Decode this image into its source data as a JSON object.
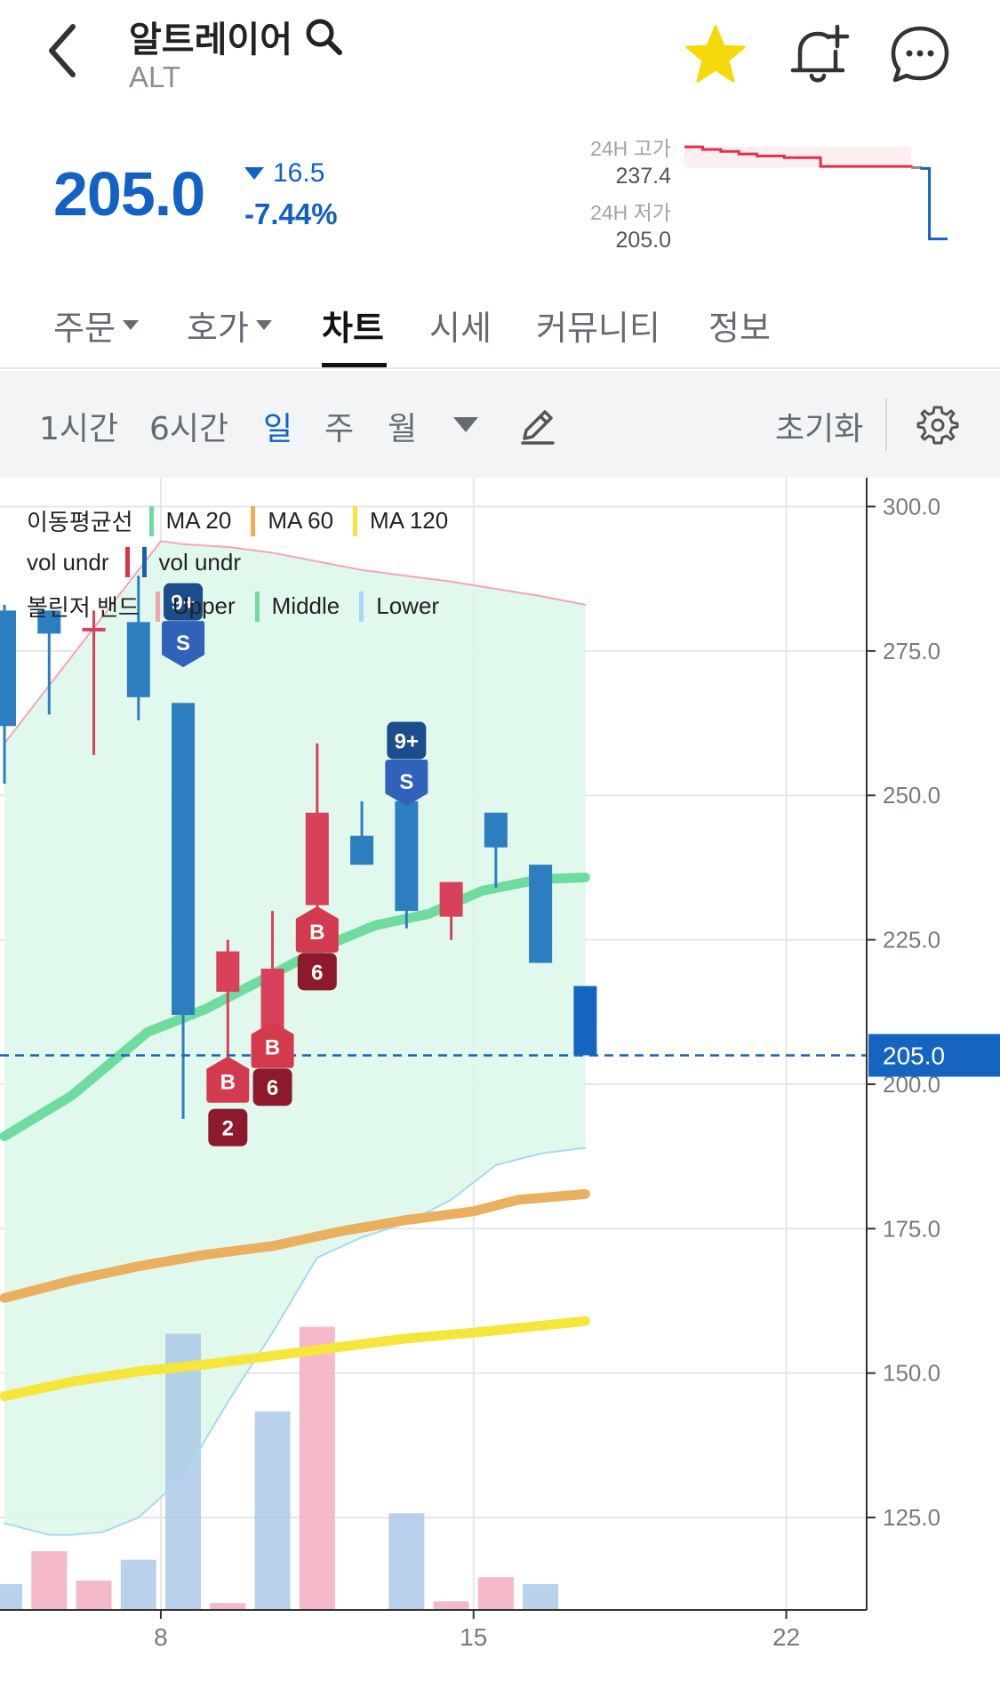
{
  "header": {
    "coin_name": "알트레이어",
    "symbol": "ALT",
    "icons": [
      "back-chevron-icon",
      "search-icon",
      "star-icon",
      "bell-plus-icon",
      "chat-bubble-icon"
    ],
    "favorite_color": "#f5d90a"
  },
  "price": {
    "current": "205.0",
    "change_abs": "16.5",
    "change_pct": "-7.44%",
    "direction": "down",
    "color": "#1261c4"
  },
  "high_low": {
    "high_label": "24H 고가",
    "high_value": "237.4",
    "low_label": "24H 저가",
    "low_value": "205.0"
  },
  "mini_chart": {
    "points": [
      237.4,
      237.4,
      236.5,
      236.5,
      235.8,
      235.8,
      234.9,
      234.9,
      234.2,
      234.2,
      234.2,
      233.6,
      233.6,
      233.6,
      233.6,
      230.5,
      230.5,
      230.5,
      230.5,
      230.5,
      230.5,
      230.5,
      230.5,
      230.5,
      230.5,
      230.1,
      229.8,
      205.0,
      205.0,
      205.0
    ],
    "high_color": "#e0304a",
    "low_color": "#1261c4"
  },
  "tabs": [
    {
      "label": "주문",
      "dropdown": true
    },
    {
      "label": "호가",
      "dropdown": true
    },
    {
      "label": "차트",
      "active": true
    },
    {
      "label": "시세"
    },
    {
      "label": "커뮤니티"
    },
    {
      "label": "정보"
    }
  ],
  "toolbar": {
    "intervals": [
      "1시간",
      "6시간",
      "일",
      "주",
      "월"
    ],
    "active_interval": "일",
    "reset_label": "초기화",
    "icons": [
      "dropdown-caret-icon",
      "pencil-icon",
      "gear-icon"
    ]
  },
  "legend": {
    "ma_title": "이동평균선",
    "ma_items": [
      {
        "label": "MA 20",
        "color": "#6edc9f"
      },
      {
        "label": "MA 60",
        "color": "#f5ac57"
      },
      {
        "label": "MA 120",
        "color": "#f6e63c"
      }
    ],
    "vol_title": "vol undr",
    "vol_label": "vol undr",
    "vol_colors": [
      "#e0304a",
      "#1a5fb4"
    ],
    "bb_title": "볼린저 밴드",
    "bb_items": [
      {
        "label": "Upper",
        "color": "#f5a5b0"
      },
      {
        "label": "Middle",
        "color": "#6edc9f"
      },
      {
        "label": "Lower",
        "color": "#a8d8f5"
      }
    ]
  },
  "chart_data": {
    "type": "candlestick",
    "y_ticks": [
      "300.0",
      "275.0",
      "250.0",
      "225.0",
      "200.0",
      "175.0",
      "150.0",
      "125.0"
    ],
    "ylim": [
      109,
      305
    ],
    "x_ticks": [
      {
        "day": 8,
        "label": "8"
      },
      {
        "day": 15,
        "label": "15"
      },
      {
        "day": 22,
        "label": "22"
      }
    ],
    "xlim": [
      4.4,
      23.8
    ],
    "current_price": 205.0,
    "current_price_label": "205.0",
    "up_color": "#d9415a",
    "down_color": "#2d7ec0",
    "candles": [
      {
        "day": 4.5,
        "open": 282,
        "close": 262,
        "high": 283,
        "low": 252
      },
      {
        "day": 5.5,
        "open": 282,
        "close": 278,
        "high": 282,
        "low": 264
      },
      {
        "day": 6.5,
        "open": 279,
        "close": 279,
        "high": 282,
        "low": 257
      },
      {
        "day": 7.5,
        "open": 280,
        "close": 267,
        "high": 288,
        "low": 263
      },
      {
        "day": 8.5,
        "open": 266,
        "close": 212,
        "high": 266,
        "low": 194
      },
      {
        "day": 9.5,
        "open": 216,
        "close": 223,
        "high": 225,
        "low": 204
      },
      {
        "day": 10.5,
        "open": 204,
        "close": 220,
        "high": 230,
        "low": 204
      },
      {
        "day": 11.5,
        "open": 231,
        "close": 247,
        "high": 259,
        "low": 230
      },
      {
        "day": 12.5,
        "open": 243,
        "close": 238,
        "high": 249,
        "low": 238
      },
      {
        "day": 13.5,
        "open": 249,
        "close": 230,
        "high": 249,
        "low": 227
      },
      {
        "day": 14.5,
        "open": 229,
        "close": 235,
        "high": 235,
        "low": 225
      },
      {
        "day": 15.5,
        "open": 247,
        "close": 241,
        "high": 247,
        "low": 234
      },
      {
        "day": 16.5,
        "open": 238,
        "close": 221,
        "high": 238,
        "low": 221
      },
      {
        "day": 17.5,
        "open": 217,
        "close": 205,
        "high": 217,
        "low": 205
      }
    ],
    "ma20": [
      [
        4.5,
        191
      ],
      [
        6,
        198
      ],
      [
        7.7,
        209
      ],
      [
        9,
        213
      ],
      [
        10.5,
        219
      ],
      [
        11.7,
        224
      ],
      [
        12.8,
        227.5
      ],
      [
        14,
        229.5
      ],
      [
        15.2,
        233.5
      ],
      [
        16.5,
        235.5
      ],
      [
        17.5,
        235.8
      ]
    ],
    "ma60": [
      [
        4.5,
        163
      ],
      [
        6,
        166
      ],
      [
        7.5,
        168.5
      ],
      [
        9,
        170.5
      ],
      [
        10.5,
        172
      ],
      [
        12,
        174.5
      ],
      [
        13.5,
        176.5
      ],
      [
        15,
        178
      ],
      [
        16,
        180
      ],
      [
        17.5,
        181
      ]
    ],
    "ma120": [
      [
        4.5,
        146
      ],
      [
        6,
        148.5
      ],
      [
        7.5,
        150.3
      ],
      [
        9,
        151.5
      ],
      [
        10.5,
        153
      ],
      [
        12,
        154.5
      ],
      [
        13.5,
        156
      ],
      [
        15,
        157
      ],
      [
        16.5,
        158.2
      ],
      [
        17.5,
        159
      ]
    ],
    "bb_upper": [
      [
        4.5,
        259
      ],
      [
        5.5,
        269
      ],
      [
        6.5,
        279
      ],
      [
        7.5,
        289
      ],
      [
        8,
        294
      ],
      [
        8.5,
        293.5
      ],
      [
        9.5,
        293
      ],
      [
        10.5,
        292
      ],
      [
        12.5,
        289
      ],
      [
        14.5,
        287
      ],
      [
        16.5,
        284.5
      ],
      [
        17.5,
        283
      ]
    ],
    "bb_lower": [
      [
        4.5,
        124
      ],
      [
        5.5,
        122
      ],
      [
        6,
        122
      ],
      [
        6.7,
        122.5
      ],
      [
        7.5,
        125
      ],
      [
        8.5,
        132
      ],
      [
        9.5,
        145
      ],
      [
        10.5,
        157
      ],
      [
        11.5,
        170
      ],
      [
        12.5,
        173.5
      ],
      [
        13.5,
        176
      ],
      [
        14.5,
        180
      ],
      [
        15.5,
        186
      ],
      [
        16.5,
        188
      ],
      [
        17.5,
        189
      ]
    ],
    "volume": [
      {
        "day": 4.5,
        "value": 15,
        "dir": "down"
      },
      {
        "day": 5.5,
        "value": 34,
        "dir": "up"
      },
      {
        "day": 6.5,
        "value": 17,
        "dir": "up"
      },
      {
        "day": 7.5,
        "value": 29,
        "dir": "down"
      },
      {
        "day": 8.5,
        "value": 160,
        "dir": "down"
      },
      {
        "day": 9.5,
        "value": 4,
        "dir": "up"
      },
      {
        "day": 10.5,
        "value": 115,
        "dir": "down"
      },
      {
        "day": 11.5,
        "value": 164,
        "dir": "up"
      },
      {
        "day": 13.5,
        "value": 56,
        "dir": "down"
      },
      {
        "day": 14.5,
        "value": 5,
        "dir": "up"
      },
      {
        "day": 15.5,
        "value": 19,
        "dir": "up"
      },
      {
        "day": 16.5,
        "value": 15,
        "dir": "down"
      }
    ],
    "volume_max": 170,
    "markers": [
      {
        "day": 8.5,
        "price": 283.5,
        "text": "9+",
        "kind": "count-sell"
      },
      {
        "day": 8.5,
        "price": 276.5,
        "text": "S",
        "kind": "sell"
      },
      {
        "day": 13.5,
        "price": 259.5,
        "text": "9+",
        "kind": "count-sell"
      },
      {
        "day": 13.5,
        "price": 252.5,
        "text": "S",
        "kind": "sell"
      },
      {
        "day": 11.5,
        "price": 226.5,
        "text": "B",
        "kind": "buy"
      },
      {
        "day": 11.5,
        "price": 219.5,
        "text": "6",
        "kind": "count-buy"
      },
      {
        "day": 10.5,
        "price": 206.5,
        "text": "B",
        "kind": "buy"
      },
      {
        "day": 10.5,
        "price": 199.5,
        "text": "6",
        "kind": "count-buy"
      },
      {
        "day": 9.5,
        "price": 200.5,
        "text": "B",
        "kind": "buy"
      },
      {
        "day": 9.5,
        "price": 192.5,
        "text": "2",
        "kind": "count-buy"
      }
    ]
  }
}
